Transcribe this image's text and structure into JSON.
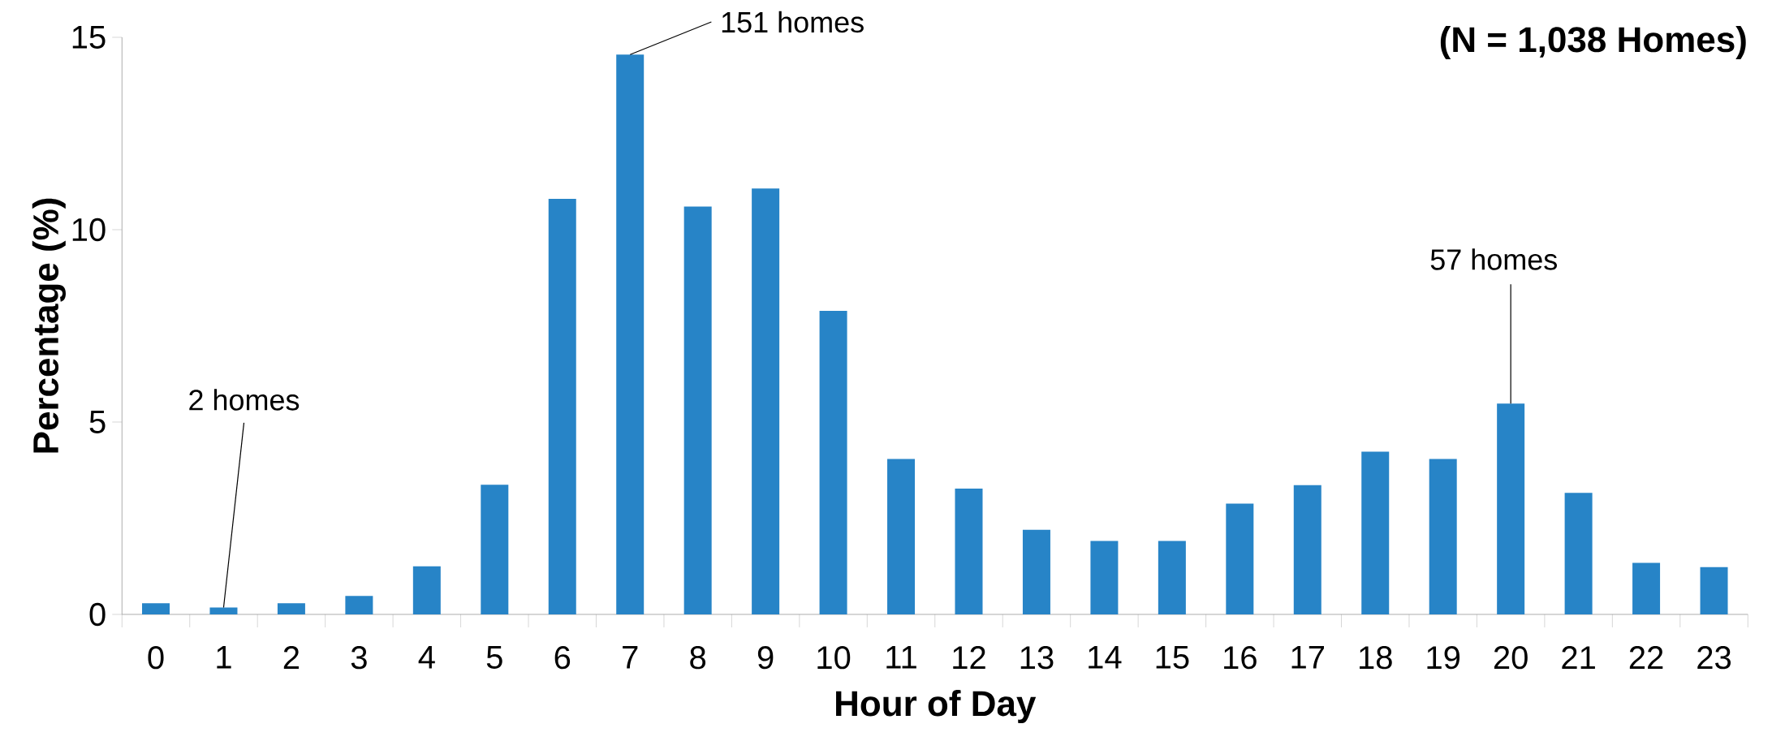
{
  "chart_data": {
    "type": "bar",
    "title": "(N = 1,038 Homes)",
    "xlabel": "Hour of Day",
    "ylabel": "Percentage (%)",
    "categories": [
      "0",
      "1",
      "2",
      "3",
      "4",
      "5",
      "6",
      "7",
      "8",
      "9",
      "10",
      "11",
      "12",
      "13",
      "14",
      "15",
      "16",
      "17",
      "18",
      "19",
      "20",
      "21",
      "22",
      "23"
    ],
    "values": [
      0.29,
      0.18,
      0.29,
      0.48,
      1.25,
      3.37,
      10.8,
      14.55,
      10.6,
      11.07,
      7.89,
      4.04,
      3.27,
      2.2,
      1.91,
      1.91,
      2.88,
      3.36,
      4.23,
      4.04,
      5.48,
      3.16,
      1.34,
      1.23
    ],
    "color": "#2784c7",
    "ylim": [
      0,
      15
    ],
    "yticks": [
      0,
      5,
      10,
      15
    ],
    "grid": false,
    "annotations": [
      {
        "text": "151 homes",
        "x": "7",
        "y": 14.55
      },
      {
        "text": "2 homes",
        "x": "1",
        "y": 0.18
      },
      {
        "text": "57 homes",
        "x": "20",
        "y": 5.48
      }
    ]
  }
}
